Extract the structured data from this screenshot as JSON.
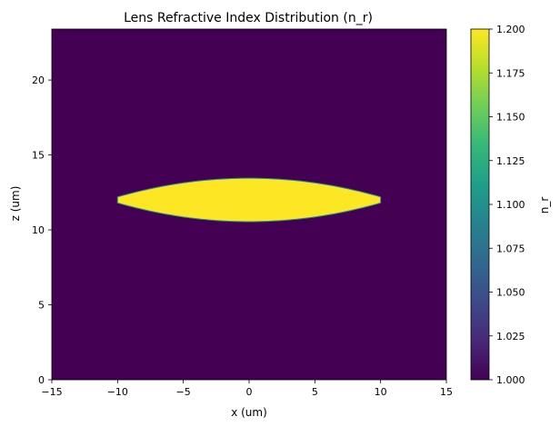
{
  "chart_data": {
    "type": "heatmap",
    "title": "Lens Refractive Index Distribution (n_r)",
    "xlabel": "x (um)",
    "ylabel": "z (um)",
    "xlim": [
      -15,
      15
    ],
    "ylim": [
      0,
      23.4
    ],
    "xticks": [
      -15,
      -10,
      -5,
      0,
      5,
      10,
      15
    ],
    "yticks": [
      0,
      5,
      10,
      15,
      20
    ],
    "background_value": 1.0,
    "lens": {
      "value": 1.2,
      "x_range": [
        -10,
        10
      ],
      "center_z": 12.0,
      "top_z_at_center": 13.45,
      "bottom_z_at_center": 10.55,
      "top_z_at_edge": 12.2,
      "bottom_z_at_edge": 11.8
    },
    "colorbar": {
      "label": "n_r",
      "range": [
        1.0,
        1.2
      ],
      "ticks": [
        "1.000",
        "1.025",
        "1.050",
        "1.075",
        "1.100",
        "1.125",
        "1.150",
        "1.175",
        "1.200"
      ]
    },
    "colors": {
      "low": "#440154",
      "high": "#fde725",
      "edge": "#21918c"
    },
    "grid": false
  }
}
